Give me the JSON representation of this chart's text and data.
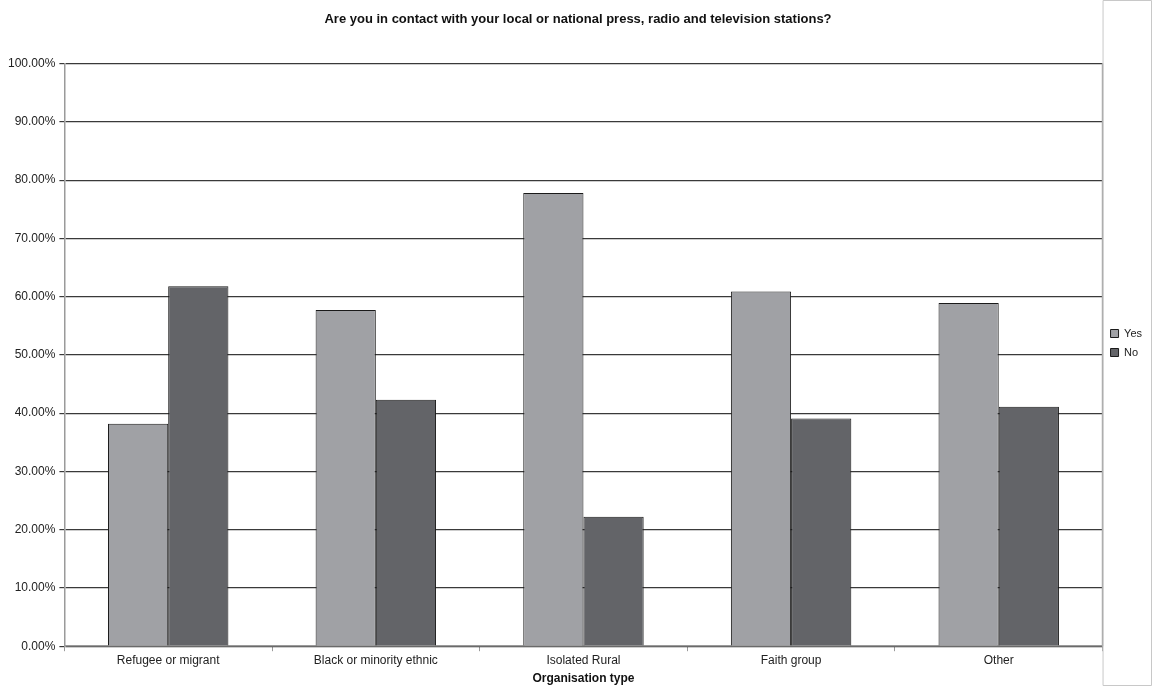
{
  "chart_data": {
    "type": "bar",
    "title": "Are you in contact with your local or national press, radio and television stations?",
    "xlabel": "Organisation type",
    "categories": [
      "Refugee or migrant",
      "Black or minority ethnic",
      "Isolated Rural",
      "Faith group",
      "Other"
    ],
    "series": [
      {
        "name": "Yes",
        "color": "#a0a1a5",
        "values": [
          38.2,
          57.7,
          77.8,
          60.9,
          58.9
        ]
      },
      {
        "name": "No",
        "color": "#636468",
        "values": [
          61.8,
          42.3,
          22.2,
          39.1,
          41.1
        ]
      }
    ],
    "ylim": [
      0,
      100
    ],
    "yticks": [
      {
        "value": 0,
        "label": "0.00%"
      },
      {
        "value": 10,
        "label": "10.00%"
      },
      {
        "value": 20,
        "label": "20.00%"
      },
      {
        "value": 30,
        "label": "30.00%"
      },
      {
        "value": 40,
        "label": "40.00%"
      },
      {
        "value": 50,
        "label": "50.00%"
      },
      {
        "value": 60,
        "label": "60.00%"
      },
      {
        "value": 70,
        "label": "70.00%"
      },
      {
        "value": 80,
        "label": "80.00%"
      },
      {
        "value": 90,
        "label": "90.00%"
      },
      {
        "value": 100,
        "label": "100.00%"
      }
    ],
    "grid": "y",
    "legend": "right"
  }
}
